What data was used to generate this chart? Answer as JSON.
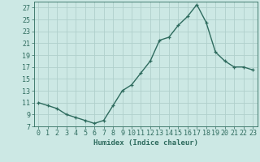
{
  "x": [
    0,
    1,
    2,
    3,
    4,
    5,
    6,
    7,
    8,
    9,
    10,
    11,
    12,
    13,
    14,
    15,
    16,
    17,
    18,
    19,
    20,
    21,
    22,
    23
  ],
  "y": [
    11,
    10.5,
    10,
    9,
    8.5,
    8,
    7.5,
    8,
    10.5,
    13,
    14,
    16,
    18,
    21.5,
    22,
    24,
    25.5,
    27.5,
    24.5,
    19.5,
    18,
    17,
    17,
    16.5
  ],
  "xlabel": "Humidex (Indice chaleur)",
  "xlim": [
    -0.5,
    23.5
  ],
  "ylim": [
    7,
    28
  ],
  "yticks": [
    7,
    9,
    11,
    13,
    15,
    17,
    19,
    21,
    23,
    25,
    27
  ],
  "xticks": [
    0,
    1,
    2,
    3,
    4,
    5,
    6,
    7,
    8,
    9,
    10,
    11,
    12,
    13,
    14,
    15,
    16,
    17,
    18,
    19,
    20,
    21,
    22,
    23
  ],
  "line_color": "#2e6b5e",
  "marker": "+",
  "bg_color": "#cce8e4",
  "grid_color": "#b0d0cc",
  "text_color": "#2e6b5e",
  "xlabel_fontsize": 6.5,
  "tick_fontsize": 6.0,
  "linewidth": 1.0,
  "markersize": 3.5,
  "markeredgewidth": 0.9
}
